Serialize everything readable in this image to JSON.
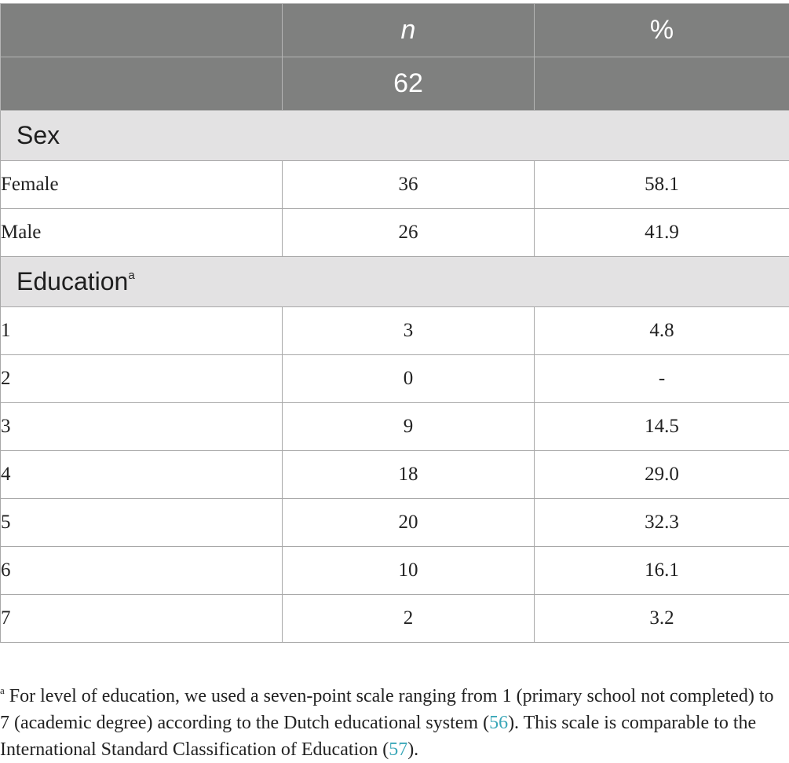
{
  "header": {
    "col1": "",
    "col2": "n",
    "col3": "%",
    "total_n": "62",
    "total_pct": ""
  },
  "sections": [
    {
      "title": "Sex",
      "superscript": "",
      "rows": [
        {
          "label": "Female",
          "n": "36",
          "pct": "58.1"
        },
        {
          "label": "Male",
          "n": "26",
          "pct": "41.9"
        }
      ]
    },
    {
      "title": "Education",
      "superscript": "a",
      "rows": [
        {
          "label": "1",
          "n": "3",
          "pct": "4.8"
        },
        {
          "label": "2",
          "n": "0",
          "pct": "-"
        },
        {
          "label": "3",
          "n": "9",
          "pct": "14.5"
        },
        {
          "label": "4",
          "n": "18",
          "pct": "29.0"
        },
        {
          "label": "5",
          "n": "20",
          "pct": "32.3"
        },
        {
          "label": "6",
          "n": "10",
          "pct": "16.1"
        },
        {
          "label": "7",
          "n": "2",
          "pct": "3.2"
        }
      ]
    }
  ],
  "footnote": {
    "marker": "a",
    "text_1": " For level of education, we used a seven-point scale ranging from 1 (primary school not completed) to 7 (academic degree) according to the Dutch educational system (",
    "ref_1": "56",
    "text_2": "). This scale is comparable to the International Standard Classification of Education (",
    "ref_2": "57",
    "text_3": ")."
  }
}
